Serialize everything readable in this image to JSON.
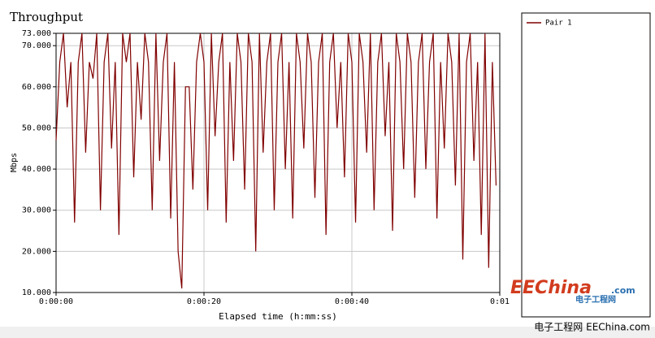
{
  "chart_data": {
    "type": "line",
    "title": "Throughput",
    "x_label": "Elapsed time (h:mm:ss)",
    "y_label": "Mbps",
    "x": [
      0,
      0.5,
      1,
      1.5,
      2,
      2.5,
      3,
      3.5,
      4,
      4.5,
      5,
      5.5,
      6,
      6.5,
      7,
      7.5,
      8,
      8.5,
      9,
      9.5,
      10,
      10.5,
      11,
      11.5,
      12,
      12.5,
      13,
      13.5,
      14,
      14.5,
      15,
      15.5,
      16,
      16.5,
      17,
      17.5,
      18,
      18.5,
      19,
      19.5,
      20,
      20.5,
      21,
      21.5,
      22,
      22.5,
      23,
      23.5,
      24,
      24.5,
      25,
      25.5,
      26,
      26.5,
      27,
      27.5,
      28,
      28.5,
      29,
      29.5,
      30,
      30.5,
      31,
      31.5,
      32,
      32.5,
      33,
      33.5,
      34,
      34.5,
      35,
      35.5,
      36,
      36.5,
      37,
      37.5,
      38,
      38.5,
      39,
      39.5,
      40,
      40.5,
      41,
      41.5,
      42,
      42.5,
      43,
      43.5,
      44,
      44.5,
      45,
      45.5,
      46,
      46.5,
      47,
      47.5,
      48,
      48.5,
      49,
      49.5,
      50,
      50.5,
      51,
      51.5,
      52,
      52.5,
      53,
      53.5,
      54,
      54.5,
      55,
      55.5,
      56,
      56.5,
      57,
      57.5,
      58,
      58.5,
      59,
      59.5
    ],
    "series": [
      {
        "name": "Pair 1",
        "color": "#800000",
        "values": [
          47,
          66,
          73,
          55,
          66,
          27,
          66,
          73,
          44,
          66,
          62,
          73,
          30,
          66,
          73,
          45,
          66,
          24,
          73,
          66,
          73,
          38,
          66,
          52,
          73,
          66,
          30,
          73,
          42,
          66,
          73,
          28,
          66,
          20,
          11,
          60,
          60,
          35,
          66,
          73,
          66,
          30,
          73,
          48,
          66,
          73,
          27,
          66,
          42,
          73,
          66,
          35,
          73,
          66,
          20,
          73,
          44,
          66,
          73,
          30,
          66,
          73,
          40,
          66,
          28,
          73,
          66,
          45,
          73,
          66,
          33,
          66,
          73,
          24,
          66,
          73,
          50,
          66,
          38,
          73,
          66,
          27,
          73,
          66,
          44,
          73,
          30,
          66,
          73,
          48,
          66,
          25,
          73,
          66,
          40,
          73,
          66,
          33,
          66,
          73,
          40,
          66,
          73,
          28,
          66,
          45,
          73,
          66,
          36,
          73,
          18,
          66,
          73,
          42,
          66,
          24,
          73,
          16,
          66,
          36
        ]
      }
    ],
    "xlim": [
      0,
      60
    ],
    "xticks": [
      {
        "value": 0,
        "label": "0:00:00"
      },
      {
        "value": 20,
        "label": "0:00:20"
      },
      {
        "value": 40,
        "label": "0:00:40"
      },
      {
        "value": 60,
        "label": "0:01"
      }
    ],
    "ylim": [
      10,
      73
    ],
    "yticks": [
      {
        "value": 10,
        "label": "10.000"
      },
      {
        "value": 20,
        "label": "20.000"
      },
      {
        "value": 30,
        "label": "30.000"
      },
      {
        "value": 40,
        "label": "40.000"
      },
      {
        "value": 50,
        "label": "50.000"
      },
      {
        "value": 60,
        "label": "60.000"
      },
      {
        "value": 70,
        "label": "70.000"
      },
      {
        "value": 73,
        "label": "73.000"
      }
    ],
    "grid": true,
    "watermark": {
      "logo": "EEChina",
      "logo_suffix": ".com",
      "logo_cn": "电子工程网",
      "footer": "电子工程网 EEChina.com"
    }
  }
}
